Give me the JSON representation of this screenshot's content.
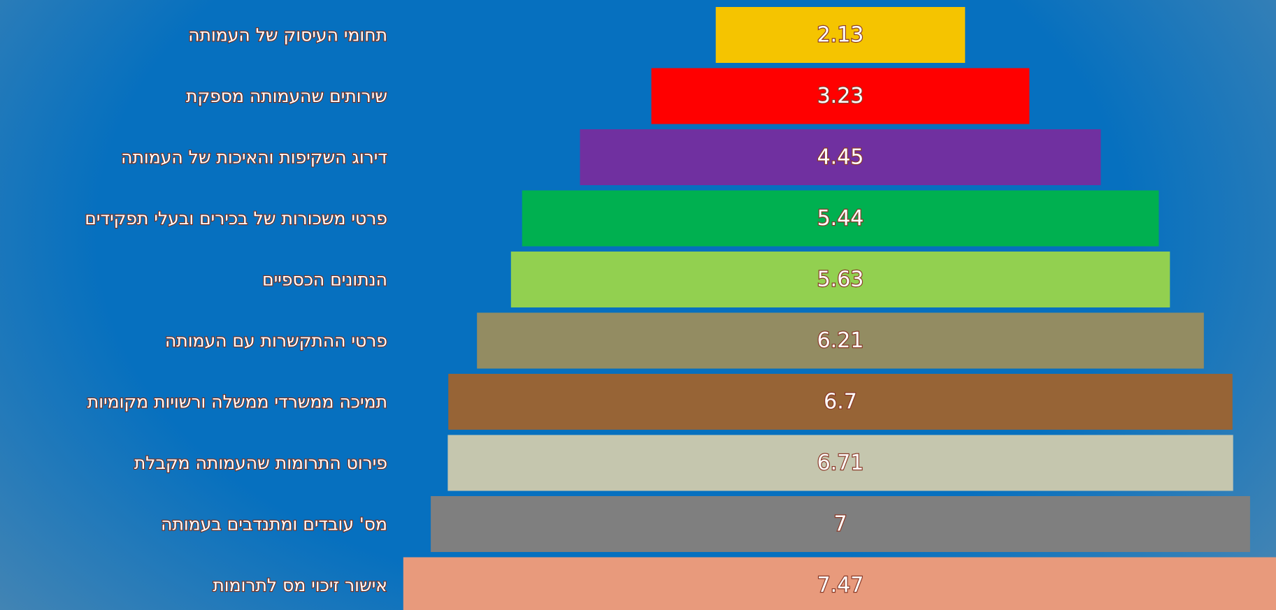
{
  "chart_data": {
    "type": "bar",
    "orientation": "horizontal-centered",
    "categories": [
      "תחומי העיסוק של העמותה",
      "שירותים שהעמותה מספקת",
      "דירוג השקיפות והאיכות של העמותה",
      "פרטי משכורות של בכירים ובעלי תפקידים",
      "הנתונים הכספיים",
      "פרטי ההתקשרות עם העמותה",
      "תמיכה ממשרדי ממשלה ורשויות מקומיות",
      "פירוט התרומות שהעמותה מקבלת",
      "מס' עובדים ומתנדבים בעמותה",
      "אישור זיכוי מס לתרומות"
    ],
    "values": [
      2.13,
      3.23,
      4.45,
      5.44,
      5.63,
      6.21,
      6.7,
      6.71,
      7,
      7.47
    ],
    "value_labels": [
      "2.13",
      "3.23",
      "4.45",
      "5.44",
      "5.63",
      "6.21",
      "6.7",
      "6.71",
      "7",
      "7.47"
    ],
    "colors": [
      "#f5c400",
      "#ff0000",
      "#7030a0",
      "#00b050",
      "#92d050",
      "#938c62",
      "#976436",
      "#c5c6ae",
      "#7f7f7f",
      "#e89a7c"
    ],
    "background": "#0670bf",
    "title": "",
    "xlabel": "",
    "ylabel": "",
    "grid": false,
    "legend": "none"
  }
}
